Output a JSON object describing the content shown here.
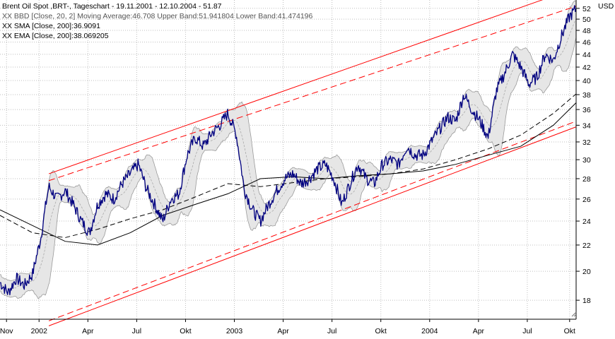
{
  "chart_data": {
    "type": "line",
    "title": "Brent Oil Spot ,BRT-, Tageschart - 19.11.2001 - 12.10.2004 - 51.87",
    "indicators": [
      "XX BBD [Close, 20, 2] Moving Average:46.708 Upper Band:51.941804 Lower Band:41.474196",
      "XX SMA [Close, 200]:36.9091",
      "XX EMA [Close, 200]:38.069205"
    ],
    "unit": "USD",
    "ylim": [
      16.8,
      53.6
    ],
    "y_ticks": [
      18,
      20,
      22,
      24,
      26,
      28,
      30,
      32,
      34,
      36,
      38,
      40,
      42,
      44,
      46,
      48,
      50,
      52
    ],
    "y_scale": "log",
    "x_range_months": [
      0,
      35.4
    ],
    "x_ticks": [
      {
        "label": "Nov",
        "m": 0.4
      },
      {
        "label": "2002",
        "m": 2.4
      },
      {
        "label": "Apr",
        "m": 5.4
      },
      {
        "label": "Jul",
        "m": 8.4
      },
      {
        "label": "Okt",
        "m": 11.4
      },
      {
        "label": "2003",
        "m": 14.4
      },
      {
        "label": "Apr",
        "m": 17.4
      },
      {
        "label": "Jul",
        "m": 20.4
      },
      {
        "label": "Okt",
        "m": 23.4
      },
      {
        "label": "2004",
        "m": 26.4
      },
      {
        "label": "Apr",
        "m": 29.4
      },
      {
        "label": "Jul",
        "m": 32.4
      },
      {
        "label": "Okt",
        "m": 35.0
      }
    ],
    "grid": true,
    "series": [
      {
        "role": "price",
        "color": "#000080",
        "x": [
          0,
          0.5,
          1,
          1.5,
          2,
          2.5,
          3,
          3.5,
          4,
          4.5,
          5,
          5.5,
          6,
          6.5,
          7,
          7.5,
          8,
          8.5,
          9,
          9.5,
          10,
          10.5,
          11,
          11.5,
          12,
          12.5,
          13,
          13.5,
          14,
          14.5,
          15,
          15.5,
          16,
          16.5,
          17,
          17.5,
          18,
          18.5,
          19,
          19.5,
          20,
          20.5,
          21,
          21.5,
          22,
          22.5,
          23,
          23.5,
          24,
          24.5,
          25,
          25.5,
          26,
          26.5,
          27,
          27.5,
          28,
          28.5,
          29,
          29.5,
          30,
          30.5,
          31,
          31.5,
          32,
          32.5,
          33,
          33.5,
          34,
          34.5,
          35,
          35.4
        ],
        "y": [
          19.2,
          18.5,
          19.5,
          19.0,
          19.8,
          22.5,
          27.2,
          26.0,
          26.8,
          25.5,
          24.0,
          23.0,
          25.5,
          26.5,
          26.0,
          27.5,
          28.5,
          29.5,
          27.0,
          25.5,
          24.0,
          26.0,
          26.5,
          30.5,
          32.5,
          31.5,
          33.0,
          34.0,
          35.5,
          33.0,
          27.0,
          25.0,
          24.0,
          25.5,
          26.8,
          28.0,
          28.5,
          27.5,
          28.0,
          29.0,
          29.5,
          28.0,
          25.5,
          27.5,
          29.5,
          28.0,
          27.5,
          29.5,
          30.0,
          29.5,
          31.5,
          30.5,
          30.5,
          32.0,
          33.5,
          35.0,
          34.5,
          38.0,
          36.0,
          34.5,
          32.5,
          38.5,
          41.0,
          44.0,
          42.0,
          39.5,
          40.5,
          44.0,
          43.0,
          47.0,
          50.5,
          51.9
        ]
      },
      {
        "role": "sma-200",
        "name": "XX SMA [Close, 200]",
        "color": "#000000",
        "x": [
          0,
          4,
          6,
          8,
          10,
          12,
          14,
          16,
          18,
          20,
          22,
          24,
          26,
          28,
          30,
          32,
          34,
          35.4
        ],
        "y": [
          25.0,
          22.3,
          22.0,
          23.0,
          24.5,
          25.5,
          26.5,
          28.0,
          28.2,
          28.0,
          28.3,
          28.5,
          28.8,
          29.5,
          30.5,
          31.5,
          34.0,
          36.9
        ]
      },
      {
        "role": "ema-200",
        "name": "XX EMA [Close, 200]",
        "color": "#000000",
        "dashed": true,
        "x": [
          0,
          2,
          4,
          6,
          8,
          10,
          12,
          14,
          16,
          18,
          20,
          22,
          24,
          26,
          28,
          30,
          32,
          34,
          35.4
        ],
        "y": [
          24.5,
          23.0,
          22.6,
          23.3,
          24.2,
          25.0,
          26.2,
          27.5,
          27.2,
          27.6,
          28.0,
          28.2,
          28.5,
          29.0,
          30.0,
          31.2,
          32.8,
          35.5,
          38.1
        ]
      }
    ],
    "bollinger": {
      "name": "XX BBD [Close, 20, 2]",
      "moving_average_last": 46.708,
      "upper_last": 51.941804,
      "lower_last": 41.474196,
      "period": 20,
      "std_dev": 2
    },
    "channel": {
      "color": "#ff0000",
      "upper_solid": [
        [
          3,
          28.5
        ],
        [
          35.4,
          56.0
        ]
      ],
      "upper_dashed": [
        [
          3,
          27.8
        ],
        [
          35.4,
          52.4
        ]
      ],
      "lower_dashed": [
        [
          3,
          16.7
        ],
        [
          35.4,
          34.5
        ]
      ],
      "lower_solid": [
        [
          3,
          16.4
        ],
        [
          35.4,
          33.8
        ]
      ]
    }
  },
  "ui": {
    "resize_grip_icon": "resize-grip-icon"
  }
}
